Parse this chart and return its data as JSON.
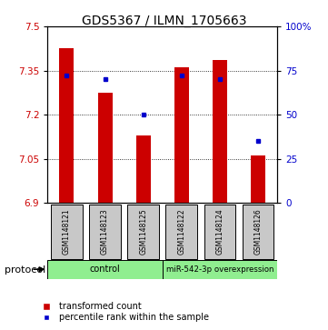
{
  "title": "GDS5367 / ILMN_1705663",
  "samples": [
    "GSM1148121",
    "GSM1148123",
    "GSM1148125",
    "GSM1148122",
    "GSM1148124",
    "GSM1148126"
  ],
  "bar_values": [
    7.425,
    7.275,
    7.13,
    7.36,
    7.385,
    7.06
  ],
  "bar_bottom": 6.9,
  "percentile_values": [
    72,
    70,
    50,
    72,
    70,
    35
  ],
  "ylim_left": [
    6.9,
    7.5
  ],
  "ylim_right": [
    0,
    100
  ],
  "yticks_left": [
    6.9,
    7.05,
    7.2,
    7.35,
    7.5
  ],
  "yticks_right": [
    0,
    25,
    50,
    75,
    100
  ],
  "ytick_labels_left": [
    "6.9",
    "7.05",
    "7.2",
    "7.35",
    "7.5"
  ],
  "ytick_labels_right": [
    "0",
    "25",
    "50",
    "75",
    "100%"
  ],
  "bar_color": "#cc0000",
  "dot_color": "#0000cc",
  "group_labels": [
    "control",
    "miR-542-3p overexpression"
  ],
  "group_color": "#90ee90",
  "protocol_label": "protocol",
  "legend_bar_label": "transformed count",
  "legend_dot_label": "percentile rank within the sample",
  "background_color": "#ffffff",
  "label_box_color": "#c8c8c8",
  "figsize": [
    3.61,
    3.63
  ],
  "dpi": 100
}
